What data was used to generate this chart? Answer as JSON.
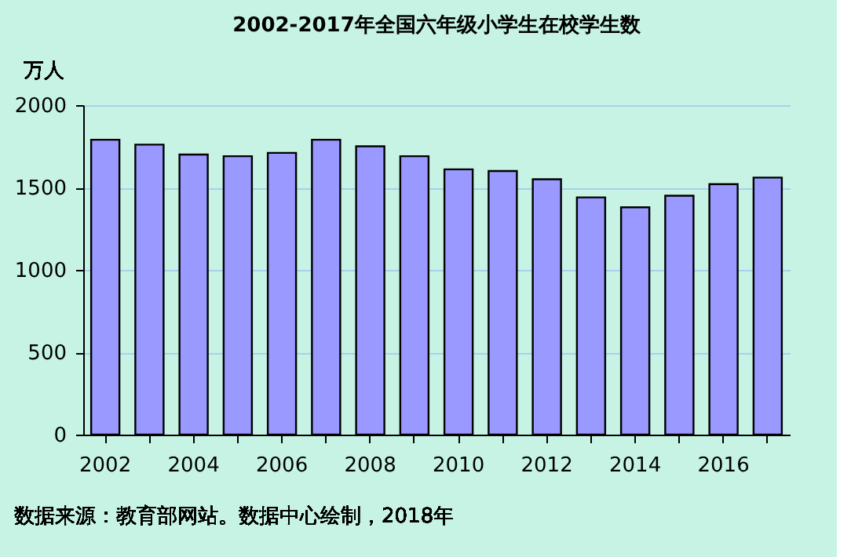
{
  "chart_data": {
    "type": "bar",
    "title": "2002-2017年全国六年级小学生在校学生数",
    "ylabel": "万人",
    "categories": [
      "2002",
      null,
      "2004",
      null,
      "2006",
      null,
      "2008",
      null,
      "2010",
      null,
      "2012",
      null,
      "2014",
      null,
      "2016",
      null
    ],
    "values": [
      1790,
      1760,
      1700,
      1690,
      1710,
      1790,
      1750,
      1690,
      1610,
      1600,
      1550,
      1440,
      1380,
      1450,
      1520,
      1560
    ],
    "color": "#9999ff",
    "ylim": [
      0,
      2000
    ],
    "yticks": [
      0,
      500,
      1000,
      1500,
      2000
    ],
    "grid": "y",
    "annotations": [
      "数据来源：教育部网站。数据中心绘制，2018年"
    ]
  }
}
